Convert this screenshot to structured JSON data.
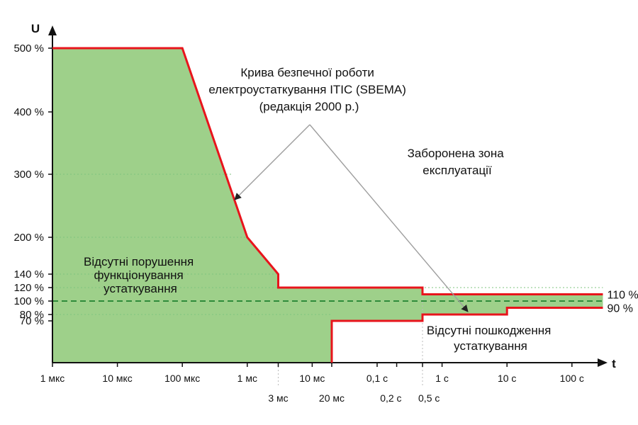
{
  "chart_data": {
    "type": "area",
    "title": "",
    "xlabel": "t",
    "ylabel": "U",
    "x_scale": "log",
    "x_unit": "s",
    "y_unit": "%",
    "xlim": [
      1e-06,
      300
    ],
    "ylim": [
      0,
      510
    ],
    "grid": "dotted lines at selected levels",
    "x_ticks": [
      {
        "value": 1e-06,
        "label": "1 мкс"
      },
      {
        "value": 1e-05,
        "label": "10 мкс"
      },
      {
        "value": 0.0001,
        "label": "100 мкс"
      },
      {
        "value": 0.001,
        "label": "1 мс"
      },
      {
        "value": 0.01,
        "label": "10 мс"
      },
      {
        "value": 0.1,
        "label": "0,1 с"
      },
      {
        "value": 1,
        "label": "1 с"
      },
      {
        "value": 10,
        "label": "10 с"
      },
      {
        "value": 100,
        "label": "100 с"
      }
    ],
    "x_markers": [
      {
        "value": 0.003,
        "label": "3 мс"
      },
      {
        "value": 0.02,
        "label": "20 мс"
      },
      {
        "value": 0.2,
        "label": "0,2 с"
      },
      {
        "value": 0.5,
        "label": "0,5 с"
      }
    ],
    "y_ticks": [
      {
        "value": 70,
        "label": "70 %"
      },
      {
        "value": 80,
        "label": "80 %"
      },
      {
        "value": 100,
        "label": "100 %"
      },
      {
        "value": 120,
        "label": "120 %"
      },
      {
        "value": 140,
        "label": "140 %"
      },
      {
        "value": 200,
        "label": "200 %"
      },
      {
        "value": 300,
        "label": "300 %"
      },
      {
        "value": 400,
        "label": "400 %"
      },
      {
        "value": 500,
        "label": "500 %"
      }
    ],
    "nominal_line": 100,
    "upper_curve": {
      "x": [
        1e-06,
        0.0001,
        0.001,
        0.003,
        0.003,
        0.5,
        0.5,
        300
      ],
      "y": [
        500,
        500,
        200,
        140,
        120,
        120,
        110,
        110
      ]
    },
    "lower_curve": {
      "x": [
        0.02,
        0.02,
        0.5,
        0.5,
        10,
        10,
        300
      ],
      "y": [
        0,
        70,
        70,
        80,
        80,
        90,
        90
      ]
    },
    "right_labels": [
      {
        "value": 110,
        "label": "110 %"
      },
      {
        "value": 90,
        "label": "90 %"
      }
    ],
    "annotations": [
      {
        "id": "curve_name",
        "lines": [
          "Крива безпечної роботи",
          "електроустаткування ITIC (SBEMA)",
          "(редакція 2000 р.)"
        ]
      },
      {
        "id": "prohibited",
        "lines": [
          "Заборонена зона",
          "експлуатації"
        ]
      },
      {
        "id": "no_disruption",
        "lines": [
          "Відсутні порушення",
          "функціонування",
          "устаткування"
        ]
      },
      {
        "id": "no_damage",
        "lines": [
          "Відсутні пошкодження",
          "устаткування"
        ]
      }
    ],
    "colors": {
      "zone_fill": "#9ed08a",
      "curve": "#e8141c",
      "nominal_line": "#2e8b3a",
      "grid": "#7fc47f",
      "axis": "#111111",
      "pointer": "#9e9e9e",
      "marker_line": "#bbbbbb"
    }
  }
}
